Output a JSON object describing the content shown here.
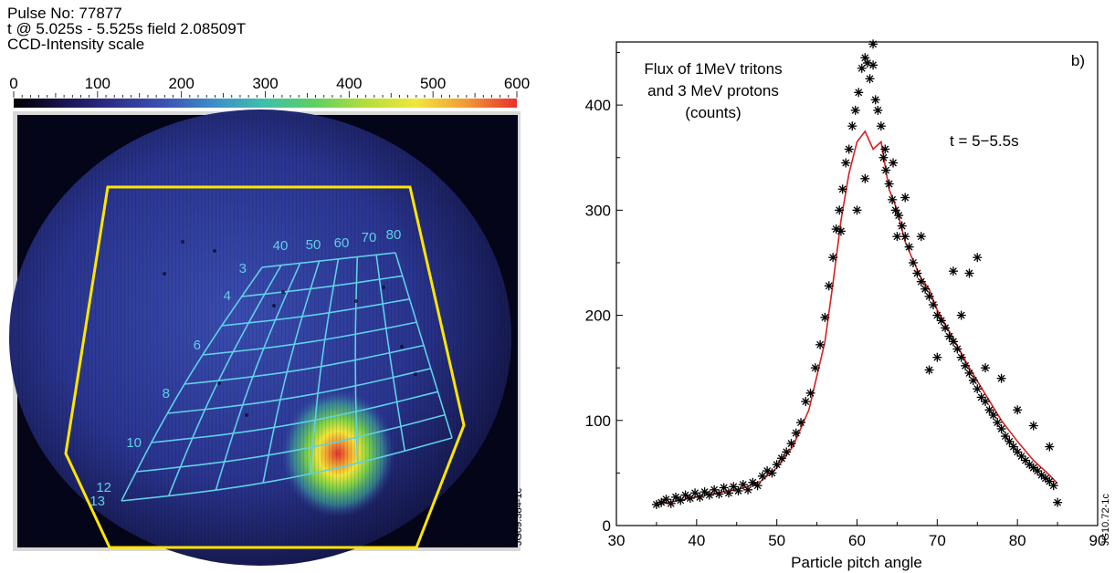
{
  "left_panel": {
    "pulse_line": "Pulse No: 77877",
    "time_line": "t @ 5.025s - 5.525s field 2.08509T",
    "scale_title": "CCD-Intensity scale",
    "scale_ticks": [
      "0",
      "100",
      "200",
      "300",
      "400",
      "500",
      "600"
    ],
    "colormap": [
      "#000000",
      "#1a1450",
      "#30308c",
      "#3a52b4",
      "#3f8fc8",
      "#3fc0a8",
      "#5ed060",
      "#b4de3c",
      "#f2e63a",
      "#f09a36",
      "#e8302e"
    ],
    "overlay_color": "#5fd0e6",
    "boundary_color": "#ffe600",
    "pitch_labels": [
      "40",
      "50",
      "60",
      "70",
      "80"
    ],
    "gyro_labels": [
      "3",
      "4",
      "6",
      "8",
      "10",
      "12",
      "13"
    ],
    "figure_id": "JG09.384-1c"
  },
  "chart_data": {
    "type": "scatter",
    "panel_label": "b)",
    "annotation": "Flux of 1MeV tritons\nand 3 MeV protons\n(counts)",
    "time_label": "t = 5−5.5s",
    "xlabel": "Particle pitch angle",
    "ylabel": "",
    "xlim": [
      30,
      90
    ],
    "ylim": [
      0,
      460
    ],
    "x_ticks": [
      30,
      40,
      50,
      60,
      70,
      80,
      90
    ],
    "y_ticks": [
      0,
      100,
      200,
      300,
      400
    ],
    "figure_id": "JG10.72-1c",
    "marker_color": "#000000",
    "fit_color": "#d62020",
    "series": [
      {
        "points": [
          [
            35,
            20
          ],
          [
            35.6,
            22
          ],
          [
            36.2,
            25
          ],
          [
            36.8,
            21
          ],
          [
            37.4,
            27
          ],
          [
            38,
            24
          ],
          [
            38.6,
            29
          ],
          [
            39.2,
            26
          ],
          [
            39.8,
            31
          ],
          [
            40.4,
            27
          ],
          [
            41,
            32
          ],
          [
            41.6,
            29
          ],
          [
            42.2,
            34
          ],
          [
            42.8,
            30
          ],
          [
            43.4,
            36
          ],
          [
            44,
            31
          ],
          [
            44.6,
            37
          ],
          [
            45.2,
            33
          ],
          [
            45.8,
            39
          ],
          [
            46.4,
            34
          ],
          [
            47,
            41
          ],
          [
            47.6,
            38
          ],
          [
            48.2,
            47
          ],
          [
            48.8,
            52
          ],
          [
            49.4,
            50
          ],
          [
            50,
            58
          ],
          [
            50.6,
            64
          ],
          [
            51.2,
            70
          ],
          [
            51.8,
            78
          ],
          [
            52.4,
            88
          ],
          [
            53,
            98
          ],
          [
            53.6,
            118
          ],
          [
            54.2,
            126
          ],
          [
            54.8,
            150
          ],
          [
            55.4,
            172
          ],
          [
            56,
            198
          ],
          [
            56.5,
            228
          ],
          [
            57,
            255
          ],
          [
            57.4,
            282
          ],
          [
            57.8,
            300
          ],
          [
            58.2,
            320
          ],
          [
            58.6,
            345
          ],
          [
            59,
            358
          ],
          [
            59.4,
            380
          ],
          [
            59.8,
            395
          ],
          [
            60.2,
            412
          ],
          [
            60.6,
            435
          ],
          [
            61,
            445
          ],
          [
            61.3,
            440
          ],
          [
            61.6,
            425
          ],
          [
            62,
            458
          ],
          [
            62.3,
            405
          ],
          [
            62.6,
            395
          ],
          [
            63,
            380
          ],
          [
            63.3,
            350
          ],
          [
            63.6,
            338
          ],
          [
            64,
            325
          ],
          [
            64.4,
            310
          ],
          [
            64.8,
            300
          ],
          [
            65.2,
            295
          ],
          [
            65.6,
            285
          ],
          [
            66,
            275
          ],
          [
            66.5,
            265
          ],
          [
            67,
            250
          ],
          [
            67.5,
            240
          ],
          [
            68,
            232
          ],
          [
            68.5,
            225
          ],
          [
            69,
            218
          ],
          [
            69.5,
            210
          ],
          [
            70,
            200
          ],
          [
            70.5,
            195
          ],
          [
            71,
            188
          ],
          [
            71.5,
            180
          ],
          [
            72,
            175
          ],
          [
            72.5,
            168
          ],
          [
            73,
            160
          ],
          [
            73.5,
            152
          ],
          [
            74,
            145
          ],
          [
            74.5,
            138
          ],
          [
            75,
            130
          ],
          [
            75.5,
            122
          ],
          [
            76,
            118
          ],
          [
            76.5,
            110
          ],
          [
            77,
            105
          ],
          [
            77.5,
            98
          ],
          [
            78,
            92
          ],
          [
            78.5,
            85
          ],
          [
            79,
            80
          ],
          [
            79.5,
            75
          ],
          [
            80,
            70
          ],
          [
            80.5,
            66
          ],
          [
            81,
            62
          ],
          [
            81.5,
            58
          ],
          [
            82,
            55
          ],
          [
            82.5,
            52
          ],
          [
            83,
            48
          ],
          [
            83.5,
            45
          ],
          [
            84,
            42
          ],
          [
            84.5,
            38
          ],
          [
            85,
            22
          ],
          [
            62,
            438
          ],
          [
            63.5,
            358
          ],
          [
            64.5,
            345
          ],
          [
            66,
            312
          ],
          [
            68,
            275
          ],
          [
            72,
            242
          ],
          [
            74,
            240
          ],
          [
            75,
            255
          ],
          [
            65,
            275
          ],
          [
            70,
            160
          ],
          [
            69,
            148
          ],
          [
            73,
            200
          ],
          [
            76,
            150
          ],
          [
            78,
            140
          ],
          [
            80,
            110
          ],
          [
            82,
            95
          ],
          [
            84,
            75
          ],
          [
            60,
            300
          ],
          [
            61,
            330
          ],
          [
            58,
            280
          ]
        ]
      }
    ],
    "fit_points": [
      [
        35,
        20
      ],
      [
        38,
        24
      ],
      [
        41,
        29
      ],
      [
        44,
        33
      ],
      [
        46,
        36
      ],
      [
        48,
        42
      ],
      [
        50,
        55
      ],
      [
        52,
        75
      ],
      [
        54,
        110
      ],
      [
        56,
        175
      ],
      [
        57,
        230
      ],
      [
        58,
        290
      ],
      [
        59,
        335
      ],
      [
        60,
        365
      ],
      [
        61,
        375
      ],
      [
        62,
        358
      ],
      [
        63,
        365
      ],
      [
        64,
        320
      ],
      [
        65,
        300
      ],
      [
        66,
        270
      ],
      [
        67,
        252
      ],
      [
        68,
        235
      ],
      [
        69,
        225
      ],
      [
        70,
        205
      ],
      [
        72,
        178
      ],
      [
        74,
        150
      ],
      [
        76,
        125
      ],
      [
        78,
        100
      ],
      [
        80,
        80
      ],
      [
        82,
        62
      ],
      [
        84,
        48
      ],
      [
        85,
        40
      ]
    ]
  }
}
